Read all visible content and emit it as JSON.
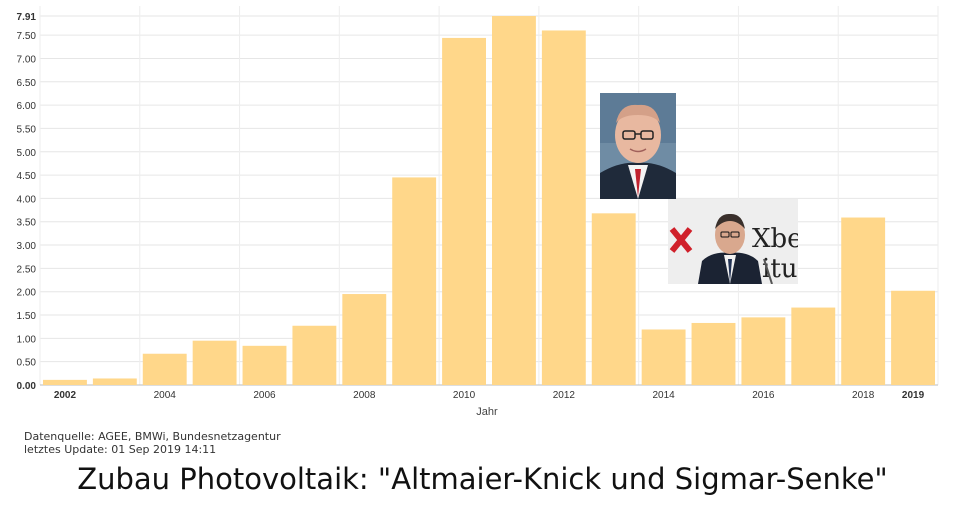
{
  "chart_data": {
    "type": "bar",
    "categories": [
      "2002",
      "2003",
      "2004",
      "2005",
      "2006",
      "2007",
      "2008",
      "2009",
      "2010",
      "2011",
      "2012",
      "2013",
      "2014",
      "2015",
      "2016",
      "2017",
      "2018",
      "2019"
    ],
    "values": [
      0.11,
      0.14,
      0.67,
      0.95,
      0.84,
      1.27,
      1.95,
      4.45,
      7.44,
      7.91,
      7.6,
      3.68,
      1.19,
      1.33,
      1.45,
      1.66,
      3.59,
      2.02
    ],
    "x_tick_labels": [
      "2002",
      "2004",
      "2006",
      "2008",
      "2010",
      "2012",
      "2014",
      "2016",
      "2018",
      "2019"
    ],
    "bold_tick_labels": [
      "2002",
      "2019"
    ],
    "y_ticks": [
      "0.00",
      "0.50",
      "1.00",
      "1.50",
      "2.00",
      "2.50",
      "3.00",
      "3.50",
      "4.00",
      "4.50",
      "5.00",
      "5.50",
      "6.00",
      "6.50",
      "7.00",
      "7.50",
      "7.91"
    ],
    "ylim": [
      0,
      7.91
    ],
    "xlabel": "Jahr",
    "ylabel": "",
    "grid": true,
    "bar_color": "#ffd78a"
  },
  "source_line": "Datenquelle: AGEE, BMWi, Bundesnetzagentur",
  "update_line": "letztes Update: 01 Sep 2019 14:11",
  "caption": "Zubau Photovoltaik: \"Altmaier-Knick und Sigmar-Senke\"",
  "photo_top_text": "Xber",
  "photo_bottom_text": "itur"
}
